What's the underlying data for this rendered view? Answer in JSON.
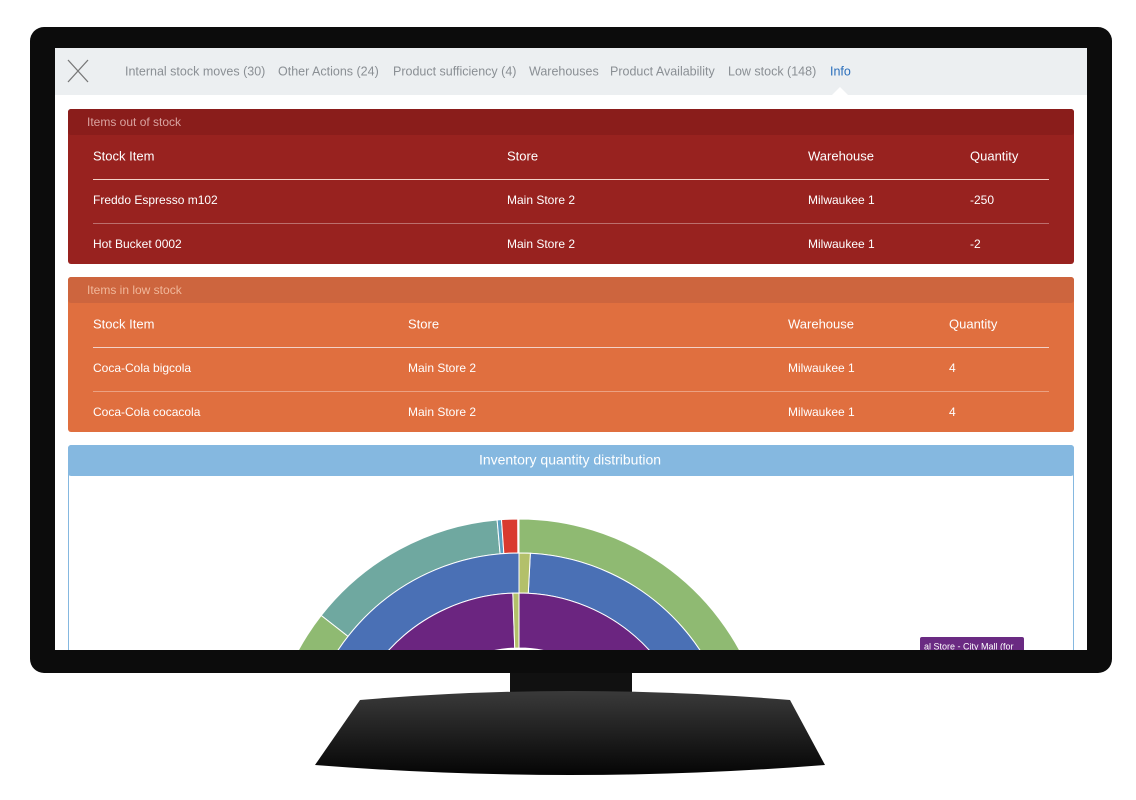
{
  "tabs": [
    "Internal stock moves (30)",
    "Other Actions (24)",
    "Product sufficiency (4)",
    "Warehouses",
    "Product Availability",
    "Low stock (148)",
    "Info"
  ],
  "out_of_stock": {
    "title": "Items out of stock",
    "columns": [
      "Stock Item",
      "Store",
      "Warehouse",
      "Quantity"
    ],
    "rows": [
      [
        "Freddo Espresso m102",
        "Main Store 2",
        "Milwaukee 1",
        -250
      ],
      [
        "Hot Bucket 0002",
        "Main Store 2",
        "Milwaukee 1",
        -2
      ]
    ]
  },
  "low_stock": {
    "title": "Items in low stock",
    "columns": [
      "Stock Item",
      "Store",
      "Warehouse",
      "Quantity"
    ],
    "rows": [
      [
        "Coca-Cola bigcola",
        "Main Store 2",
        "Milwaukee 1",
        4
      ],
      [
        "Coca-Cola cocacola",
        "Main Store 2",
        "Milwaukee 1",
        4
      ]
    ]
  },
  "chart": {
    "title": "Inventory quantity distribution",
    "tooltip": "al Store - City Mall (for"
  }
}
